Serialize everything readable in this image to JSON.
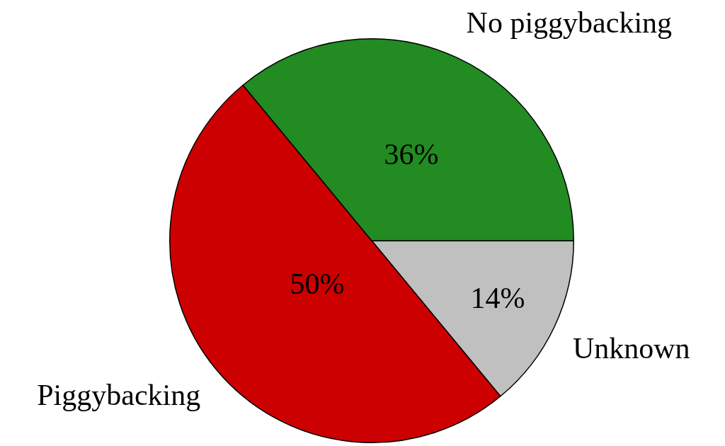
{
  "chart_data": {
    "type": "pie",
    "categories": [
      "Unknown",
      "Piggybacking",
      "No piggybacking"
    ],
    "values": [
      14,
      50,
      36
    ],
    "value_labels": [
      "14%",
      "50%",
      "36%"
    ],
    "colors": [
      "#c0c0c0",
      "#cc0000",
      "#228b22"
    ],
    "data_labels": true,
    "legend": false
  }
}
